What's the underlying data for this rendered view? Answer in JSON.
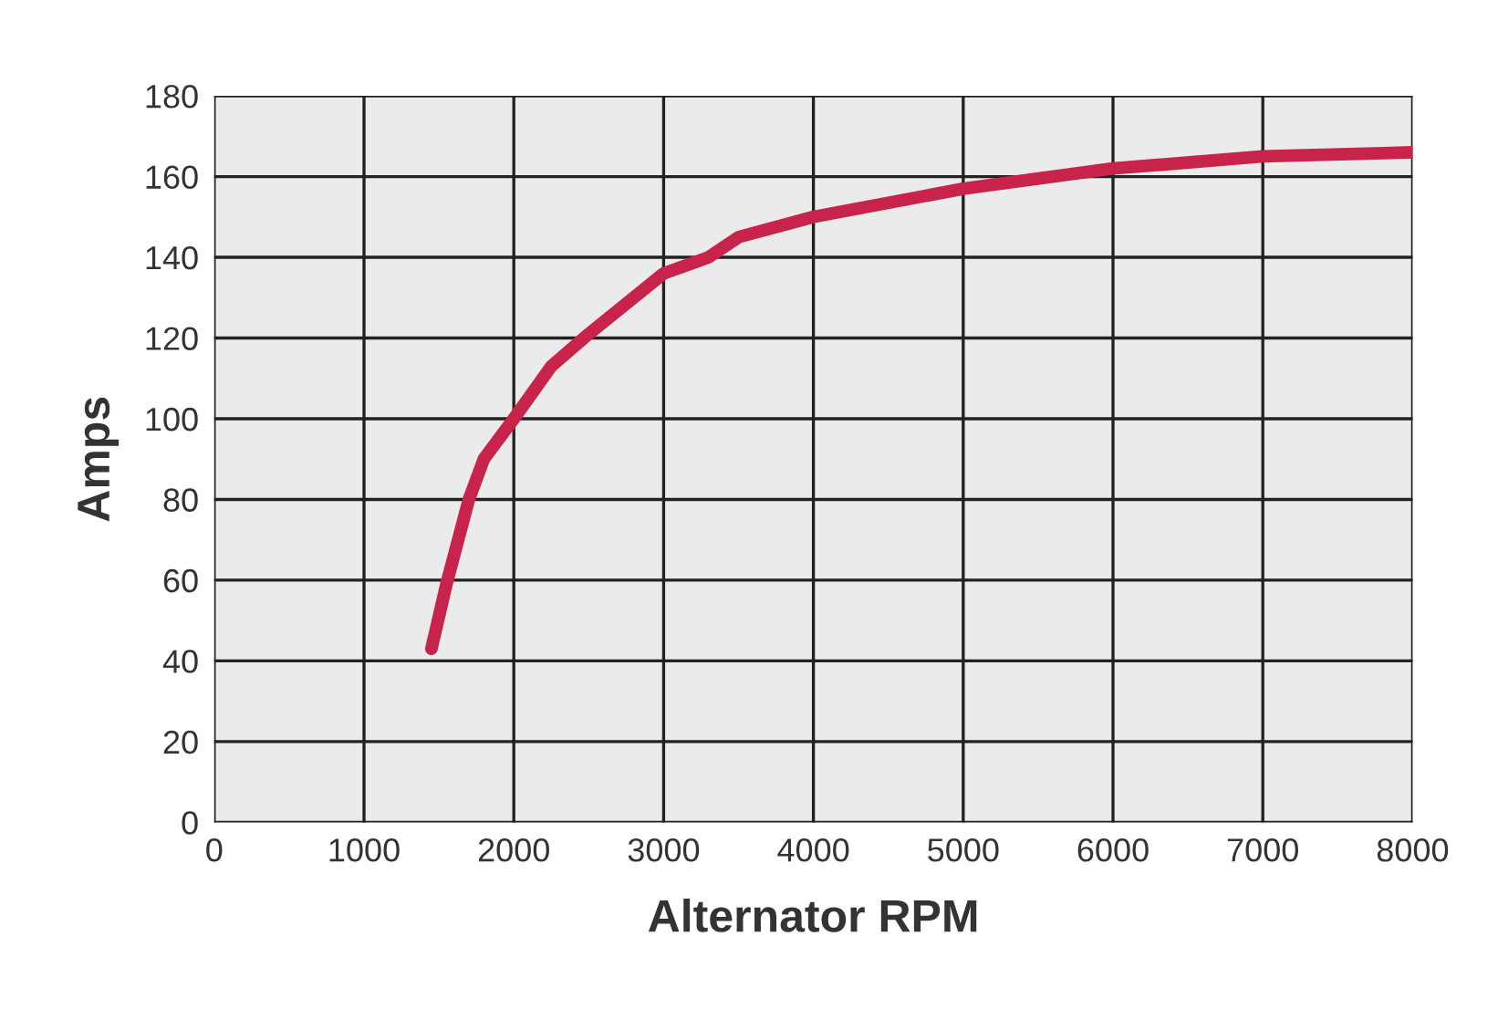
{
  "chart_data": {
    "type": "line",
    "xlabel": "Alternator RPM",
    "ylabel": "Amps",
    "series": [
      {
        "color": "#c8234a",
        "x": [
          1450,
          1550,
          1700,
          1800,
          2000,
          2250,
          2500,
          3000,
          3300,
          3500,
          4000,
          5000,
          6000,
          7000,
          8000
        ],
        "values": [
          43,
          59,
          80,
          90,
          100,
          113,
          121,
          136,
          140,
          145,
          150,
          157,
          162,
          165,
          166
        ]
      }
    ],
    "xlim": [
      0,
      8000
    ],
    "xticks": [
      0,
      1000,
      2000,
      3000,
      4000,
      5000,
      6000,
      7000,
      8000
    ],
    "ylim": [
      0,
      180
    ],
    "yticks": [
      0,
      20,
      40,
      60,
      80,
      100,
      120,
      140,
      160,
      180
    ],
    "grid": true,
    "marker": "none",
    "line_style": "solid"
  }
}
